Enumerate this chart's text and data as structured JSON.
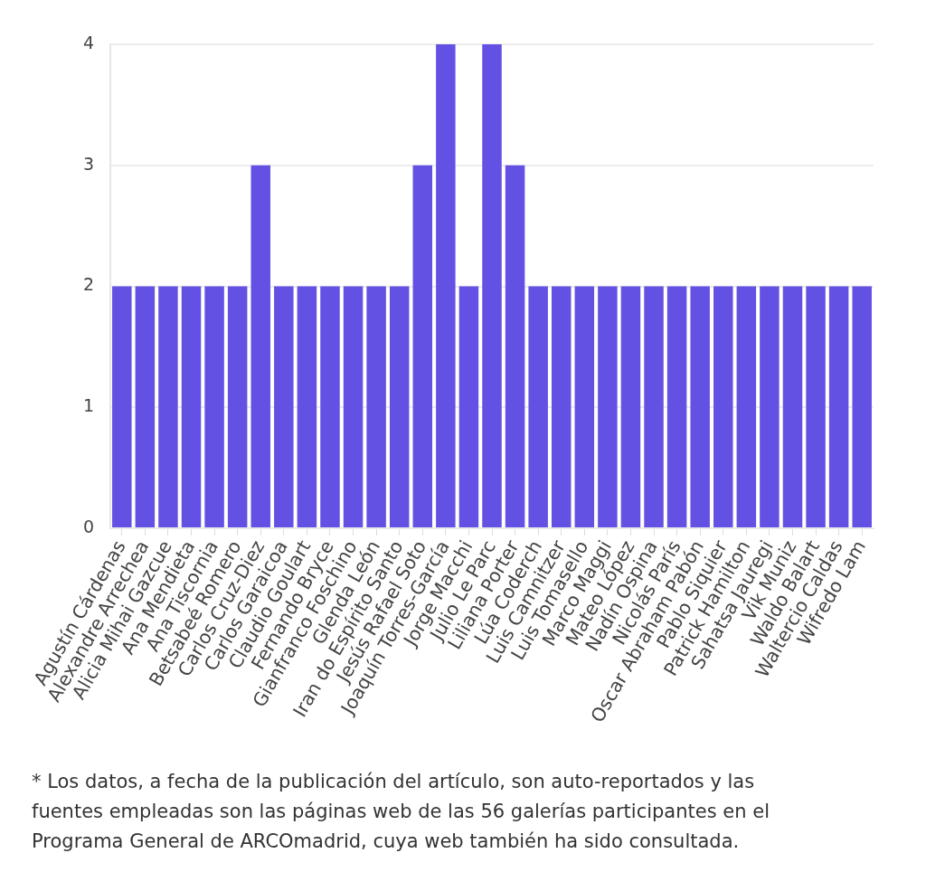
{
  "chart_data": {
    "type": "bar",
    "categories": [
      "Agustín Cárdenas",
      "Alexandre Arrechea",
      "Alicia Mihai Gazcue",
      "Ana Mendieta",
      "Ana Tiscornia",
      "Betsabeé Romero",
      "Carlos Cruz-Diez",
      "Carlos Garaicoa",
      "Claudio Goulart",
      "Fernando Bryce",
      "Gianfranco Foschino",
      "Glenda León",
      "Iran do Espírito Santo",
      "Jesús Rafael Soto",
      "Joaquín Torres-García",
      "Jorge Macchi",
      "Julio Le Parc",
      "Liliana Porter",
      "Lúa Coderch",
      "Luis Camnitzer",
      "Luis Tomasello",
      "Marco Maggi",
      "Mateo López",
      "Nadín Ospina",
      "Nicolás París",
      "Oscar Abraham Pabón",
      "Pablo Siquier",
      "Patrick Hamilton",
      "Sahatsa Jauregi",
      "Vik Muniz",
      "Waldo Balart",
      "Waltercio Caldas",
      "Wifredo Lam"
    ],
    "values": [
      2,
      2,
      2,
      2,
      2,
      2,
      3,
      2,
      2,
      2,
      2,
      2,
      2,
      3,
      4,
      2,
      4,
      3,
      2,
      2,
      2,
      2,
      2,
      2,
      2,
      2,
      2,
      2,
      2,
      2,
      2,
      2,
      2
    ],
    "color": "#6351e3",
    "ylim": [
      0,
      4
    ],
    "yticks": [
      0,
      1,
      2,
      3,
      4
    ],
    "grid": "y",
    "annotations": [
      "* Los datos, a fecha de la publicación del artículo, son auto-reportados y las fuentes empleadas son las páginas web de las 56 galerías participantes en el Programa General de ARCOmadrid, cuya web también ha sido consultada."
    ]
  }
}
